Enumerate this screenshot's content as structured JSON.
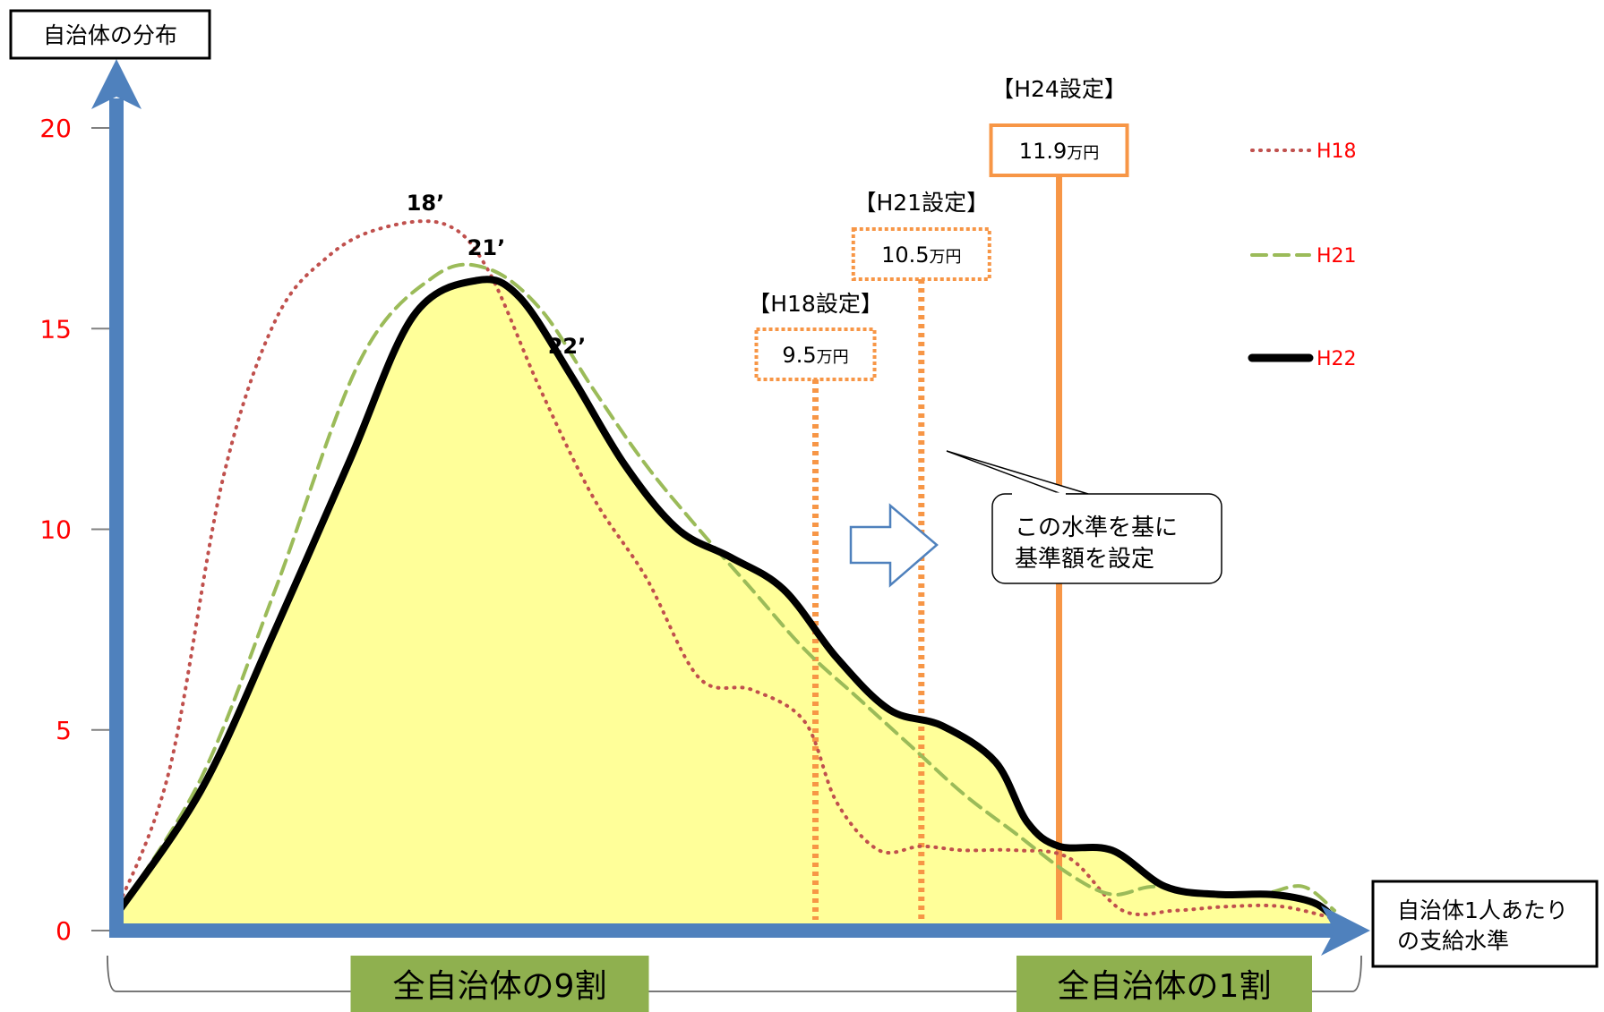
{
  "chart_data": {
    "type": "area",
    "ylabel": "自治体の分布",
    "xlabel_lines": [
      "自治体1人あたり",
      "の支給水準"
    ],
    "yticks": [
      0,
      5,
      10,
      15,
      20
    ],
    "ylim": [
      0,
      20
    ],
    "x_domain": [
      4,
      15.5
    ],
    "legend_position": "top-right",
    "series": [
      {
        "name": "H18",
        "style": "dotted",
        "color": "#c0504d",
        "peak_label": "18’",
        "points": [
          [
            4.0,
            0.5
          ],
          [
            4.5,
            4
          ],
          [
            5.0,
            11.2
          ],
          [
            5.5,
            15.2
          ],
          [
            6.0,
            16.8
          ],
          [
            6.5,
            17.5
          ],
          [
            7.1,
            17.6
          ],
          [
            7.5,
            16.5
          ],
          [
            8.0,
            13.5
          ],
          [
            8.5,
            10.8
          ],
          [
            9.0,
            8.8
          ],
          [
            9.5,
            6.3
          ],
          [
            10.0,
            6.0
          ],
          [
            10.5,
            5.2
          ],
          [
            10.8,
            3.2
          ],
          [
            11.2,
            2.0
          ],
          [
            11.6,
            2.1
          ],
          [
            12.0,
            2.0
          ],
          [
            12.5,
            2.0
          ],
          [
            13.0,
            1.8
          ],
          [
            13.5,
            0.5
          ],
          [
            14.0,
            0.5
          ],
          [
            14.5,
            0.6
          ],
          [
            15.0,
            0.6
          ],
          [
            15.5,
            0.3
          ]
        ]
      },
      {
        "name": "H21",
        "style": "dashed",
        "color": "#9bbb59",
        "peak_label": "21’",
        "points": [
          [
            4.0,
            0.4
          ],
          [
            4.8,
            3.8
          ],
          [
            5.5,
            8.5
          ],
          [
            6.3,
            14.2
          ],
          [
            7.0,
            16.3
          ],
          [
            7.5,
            16.5
          ],
          [
            8.0,
            15.5
          ],
          [
            8.5,
            13.5
          ],
          [
            9.0,
            11.6
          ],
          [
            9.5,
            10.0
          ],
          [
            10.0,
            8.5
          ],
          [
            10.5,
            7.0
          ],
          [
            11.0,
            5.8
          ],
          [
            11.5,
            4.6
          ],
          [
            12.0,
            3.4
          ],
          [
            12.5,
            2.4
          ],
          [
            13.0,
            1.4
          ],
          [
            13.4,
            0.9
          ],
          [
            13.8,
            1.1
          ],
          [
            14.3,
            0.9
          ],
          [
            14.8,
            0.9
          ],
          [
            15.2,
            1.1
          ],
          [
            15.5,
            0.5
          ]
        ]
      },
      {
        "name": "H22",
        "style": "solid",
        "color": "#000000",
        "peak_label": "22’",
        "points": [
          [
            4.0,
            0.4
          ],
          [
            4.8,
            3.5
          ],
          [
            5.5,
            7.5
          ],
          [
            6.2,
            11.7
          ],
          [
            6.8,
            15.3
          ],
          [
            7.4,
            16.2
          ],
          [
            7.8,
            15.8
          ],
          [
            8.3,
            13.8
          ],
          [
            8.8,
            11.6
          ],
          [
            9.3,
            10.0
          ],
          [
            9.8,
            9.3
          ],
          [
            10.3,
            8.5
          ],
          [
            10.8,
            6.8
          ],
          [
            11.3,
            5.5
          ],
          [
            11.8,
            5.1
          ],
          [
            12.3,
            4.2
          ],
          [
            12.6,
            2.7
          ],
          [
            12.9,
            2.1
          ],
          [
            13.4,
            2.0
          ],
          [
            13.9,
            1.1
          ],
          [
            14.4,
            0.9
          ],
          [
            14.9,
            0.9
          ],
          [
            15.3,
            0.7
          ],
          [
            15.5,
            0.3
          ]
        ]
      }
    ],
    "thresholds": [
      {
        "label": "【H18設定】",
        "value_num": "9.5",
        "unit": "万円",
        "x": 10.6,
        "style": "dotted"
      },
      {
        "label": "【H21設定】",
        "value_num": "10.5",
        "unit": "万円",
        "x": 11.6,
        "style": "dotted"
      },
      {
        "label": "【H24設定】",
        "value_num": "11.9",
        "unit": "万円",
        "x": 12.9,
        "style": "solid"
      }
    ],
    "callout": {
      "lines": [
        "この水準を基に",
        "基準額を設定"
      ]
    },
    "brackets": [
      {
        "label": "全自治体の9割",
        "from": 4.0,
        "to": 12.9
      },
      {
        "label": "全自治体の1割",
        "from": 12.9,
        "to": 15.5
      }
    ]
  },
  "colors": {
    "axis": "#4f81bd",
    "fill": "#ffff99",
    "threshold": "#f79646",
    "tick_label": "#ff0000",
    "legend_text": "#ff0000",
    "bracket_label_bg": "#8fb04f"
  }
}
